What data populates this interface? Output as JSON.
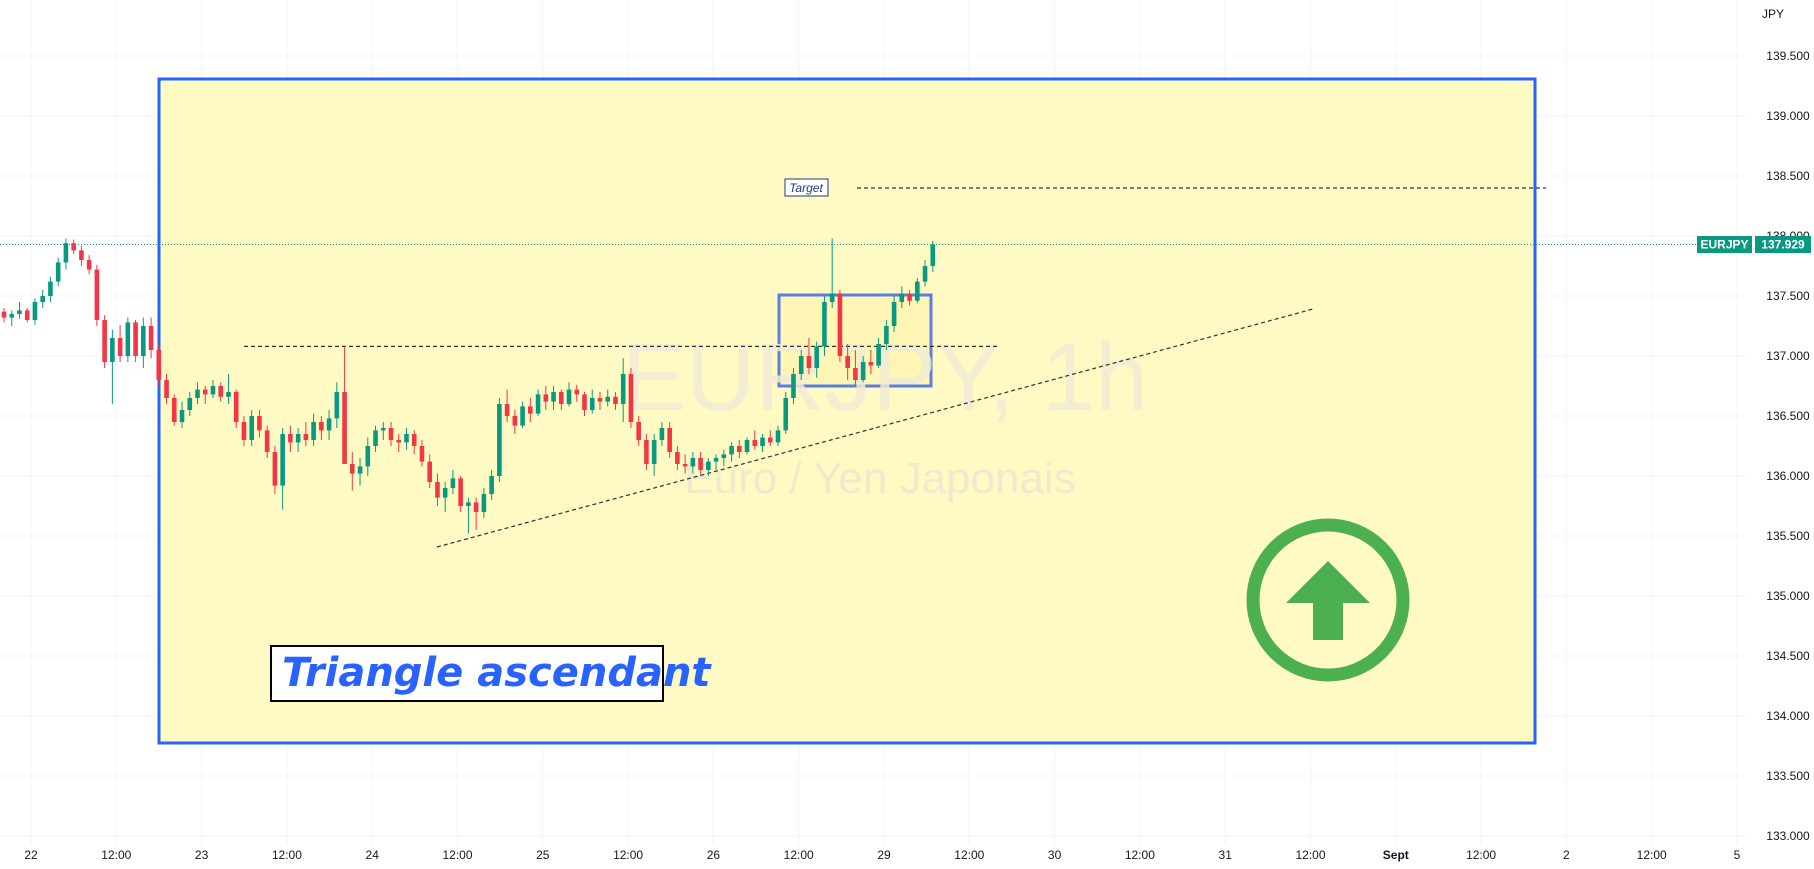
{
  "chart_data": {
    "type": "candlestick",
    "symbol": "EURJPY",
    "interval": "1h",
    "description": "Euro / Yen Japonais",
    "currency": "JPY",
    "y_axis": {
      "min": 133.0,
      "max": 139.8,
      "ticks": [
        "139.500",
        "139.000",
        "138.500",
        "138.000",
        "137.500",
        "137.000",
        "136.500",
        "136.000",
        "135.500",
        "135.000",
        "134.500",
        "134.000",
        "133.500",
        "133.000"
      ]
    },
    "x_axis": {
      "ticks": [
        "22",
        "12:00",
        "23",
        "12:00",
        "24",
        "12:00",
        "25",
        "12:00",
        "26",
        "12:00",
        "29",
        "12:00",
        "30",
        "12:00",
        "31",
        "12:00",
        "Sept",
        "12:00",
        "2",
        "12:00",
        "5"
      ]
    },
    "last_price": "137.929",
    "grid": true,
    "candles": [
      [
        137.37,
        137.4,
        137.28,
        137.32
      ],
      [
        137.32,
        137.38,
        137.25,
        137.35
      ],
      [
        137.35,
        137.45,
        137.31,
        137.38
      ],
      [
        137.38,
        137.4,
        137.28,
        137.3
      ],
      [
        137.3,
        137.48,
        137.26,
        137.45
      ],
      [
        137.45,
        137.55,
        137.4,
        137.5
      ],
      [
        137.5,
        137.66,
        137.45,
        137.62
      ],
      [
        137.62,
        137.82,
        137.58,
        137.78
      ],
      [
        137.78,
        137.98,
        137.72,
        137.94
      ],
      [
        137.94,
        137.97,
        137.85,
        137.88
      ],
      [
        137.88,
        137.92,
        137.75,
        137.8
      ],
      [
        137.8,
        137.84,
        137.68,
        137.72
      ],
      [
        137.72,
        137.76,
        137.25,
        137.3
      ],
      [
        137.3,
        137.34,
        136.9,
        136.95
      ],
      [
        136.95,
        137.22,
        136.6,
        137.15
      ],
      [
        137.15,
        137.26,
        136.95,
        137.0
      ],
      [
        137.0,
        137.32,
        136.95,
        137.28
      ],
      [
        137.28,
        137.3,
        136.95,
        137.0
      ],
      [
        137.0,
        137.32,
        136.9,
        137.25
      ],
      [
        137.25,
        137.32,
        136.98,
        137.05
      ],
      [
        137.05,
        137.1,
        136.75,
        136.8
      ],
      [
        136.8,
        136.85,
        136.6,
        136.65
      ],
      [
        136.65,
        136.68,
        136.42,
        136.45
      ],
      [
        136.45,
        136.62,
        136.4,
        136.55
      ],
      [
        136.55,
        136.7,
        136.5,
        136.65
      ],
      [
        136.65,
        136.78,
        136.6,
        136.72
      ],
      [
        136.72,
        136.75,
        136.6,
        136.68
      ],
      [
        136.68,
        136.8,
        136.65,
        136.75
      ],
      [
        136.75,
        136.78,
        136.62,
        136.66
      ],
      [
        136.66,
        136.85,
        136.6,
        136.7
      ],
      [
        136.7,
        136.72,
        136.4,
        136.45
      ],
      [
        136.45,
        136.5,
        136.25,
        136.3
      ],
      [
        136.3,
        136.55,
        136.25,
        136.5
      ],
      [
        136.5,
        136.55,
        136.32,
        136.38
      ],
      [
        136.38,
        136.42,
        136.15,
        136.2
      ],
      [
        136.2,
        136.25,
        135.85,
        135.92
      ],
      [
        135.92,
        136.4,
        135.72,
        136.35
      ],
      [
        136.35,
        136.42,
        136.2,
        136.28
      ],
      [
        136.28,
        136.4,
        136.2,
        136.35
      ],
      [
        136.35,
        136.45,
        136.25,
        136.3
      ],
      [
        136.3,
        136.52,
        136.25,
        136.45
      ],
      [
        136.45,
        136.5,
        136.3,
        136.38
      ],
      [
        136.38,
        136.55,
        136.3,
        136.48
      ],
      [
        136.48,
        136.78,
        136.4,
        136.7
      ],
      [
        136.7,
        137.08,
        136.15,
        136.1
      ],
      [
        136.1,
        136.2,
        135.88,
        136.02
      ],
      [
        136.02,
        136.15,
        135.92,
        136.08
      ],
      [
        136.08,
        136.32,
        136.0,
        136.25
      ],
      [
        136.25,
        136.42,
        136.2,
        136.38
      ],
      [
        136.38,
        136.45,
        136.3,
        136.4
      ],
      [
        136.4,
        136.45,
        136.25,
        136.3
      ],
      [
        136.3,
        136.35,
        136.2,
        136.28
      ],
      [
        136.28,
        136.4,
        136.22,
        136.35
      ],
      [
        136.35,
        136.38,
        136.18,
        136.25
      ],
      [
        136.25,
        136.3,
        136.08,
        136.12
      ],
      [
        136.12,
        136.18,
        135.9,
        135.95
      ],
      [
        135.95,
        136.02,
        135.75,
        135.82
      ],
      [
        135.82,
        135.95,
        135.7,
        135.9
      ],
      [
        135.9,
        136.05,
        135.85,
        135.98
      ],
      [
        135.98,
        136.0,
        135.7,
        135.75
      ],
      [
        135.75,
        135.82,
        135.52,
        135.78
      ],
      [
        135.78,
        135.82,
        135.55,
        135.7
      ],
      [
        135.7,
        135.9,
        135.65,
        135.85
      ],
      [
        135.85,
        136.05,
        135.8,
        136.0
      ],
      [
        136.0,
        136.65,
        135.95,
        136.6
      ],
      [
        136.6,
        136.72,
        136.45,
        136.5
      ],
      [
        136.5,
        136.55,
        136.35,
        136.42
      ],
      [
        136.42,
        136.62,
        136.4,
        136.58
      ],
      [
        136.58,
        136.65,
        136.45,
        136.52
      ],
      [
        136.52,
        136.72,
        136.5,
        136.68
      ],
      [
        136.68,
        136.75,
        136.55,
        136.62
      ],
      [
        136.62,
        136.75,
        136.55,
        136.7
      ],
      [
        136.7,
        136.72,
        136.55,
        136.6
      ],
      [
        136.6,
        136.78,
        136.58,
        136.72
      ],
      [
        136.72,
        136.76,
        136.62,
        136.68
      ],
      [
        136.68,
        136.7,
        136.5,
        136.55
      ],
      [
        136.55,
        136.72,
        136.52,
        136.65
      ],
      [
        136.65,
        136.7,
        136.55,
        136.62
      ],
      [
        136.62,
        136.72,
        136.58,
        136.66
      ],
      [
        136.66,
        136.7,
        136.55,
        136.6
      ],
      [
        136.6,
        136.98,
        136.45,
        136.85
      ],
      [
        136.85,
        136.9,
        136.4,
        136.45
      ],
      [
        136.45,
        136.5,
        136.25,
        136.3
      ],
      [
        136.3,
        136.35,
        136.05,
        136.1
      ],
      [
        136.1,
        136.35,
        136.0,
        136.3
      ],
      [
        136.3,
        136.45,
        136.25,
        136.4
      ],
      [
        136.4,
        136.45,
        136.15,
        136.2
      ],
      [
        136.2,
        136.25,
        136.05,
        136.1
      ],
      [
        136.1,
        136.18,
        136.02,
        136.08
      ],
      [
        136.08,
        136.2,
        136.02,
        136.15
      ],
      [
        136.15,
        136.2,
        136.0,
        136.05
      ],
      [
        136.05,
        136.15,
        136.0,
        136.12
      ],
      [
        136.12,
        136.18,
        136.05,
        136.15
      ],
      [
        136.15,
        136.22,
        136.08,
        136.18
      ],
      [
        136.18,
        136.28,
        136.12,
        136.25
      ],
      [
        136.25,
        136.3,
        136.15,
        136.2
      ],
      [
        136.2,
        136.32,
        136.18,
        136.3
      ],
      [
        136.3,
        136.38,
        136.22,
        136.25
      ],
      [
        136.25,
        136.35,
        136.2,
        136.32
      ],
      [
        136.32,
        136.38,
        136.25,
        136.28
      ],
      [
        136.28,
        136.42,
        136.25,
        136.38
      ],
      [
        136.38,
        136.7,
        136.35,
        136.65
      ],
      [
        136.65,
        136.9,
        136.6,
        136.85
      ],
      [
        136.85,
        137.05,
        136.8,
        137.0
      ],
      [
        137.0,
        137.15,
        136.85,
        136.9
      ],
      [
        136.9,
        137.12,
        136.82,
        137.08
      ],
      [
        137.08,
        137.5,
        137.0,
        137.45
      ],
      [
        137.45,
        137.98,
        137.4,
        137.52
      ],
      [
        137.52,
        137.55,
        136.95,
        137.0
      ],
      [
        137.0,
        137.1,
        136.8,
        136.9
      ],
      [
        136.9,
        137.05,
        136.75,
        136.8
      ],
      [
        136.8,
        137.0,
        136.78,
        136.95
      ],
      [
        136.95,
        137.05,
        136.85,
        136.92
      ],
      [
        136.92,
        137.15,
        136.9,
        137.1
      ],
      [
        137.1,
        137.3,
        137.05,
        137.25
      ],
      [
        137.25,
        137.5,
        137.2,
        137.45
      ],
      [
        137.45,
        137.58,
        137.4,
        137.52
      ],
      [
        137.52,
        137.55,
        137.42,
        137.46
      ],
      [
        137.46,
        137.65,
        137.44,
        137.62
      ],
      [
        137.62,
        137.8,
        137.58,
        137.75
      ],
      [
        137.75,
        137.96,
        137.7,
        137.93
      ]
    ]
  },
  "drawings": {
    "label_text": "Triangle ascendant",
    "target_label": "Target",
    "target_price": 138.4,
    "resistance_price": 137.08,
    "box_color": "#2962ff",
    "fill_color": "#fff9c4",
    "arrow_color": "#4caf50",
    "up_color": "#089981",
    "down_color": "#f23645",
    "arrow_icon": "up-arrow-circle-icon"
  }
}
